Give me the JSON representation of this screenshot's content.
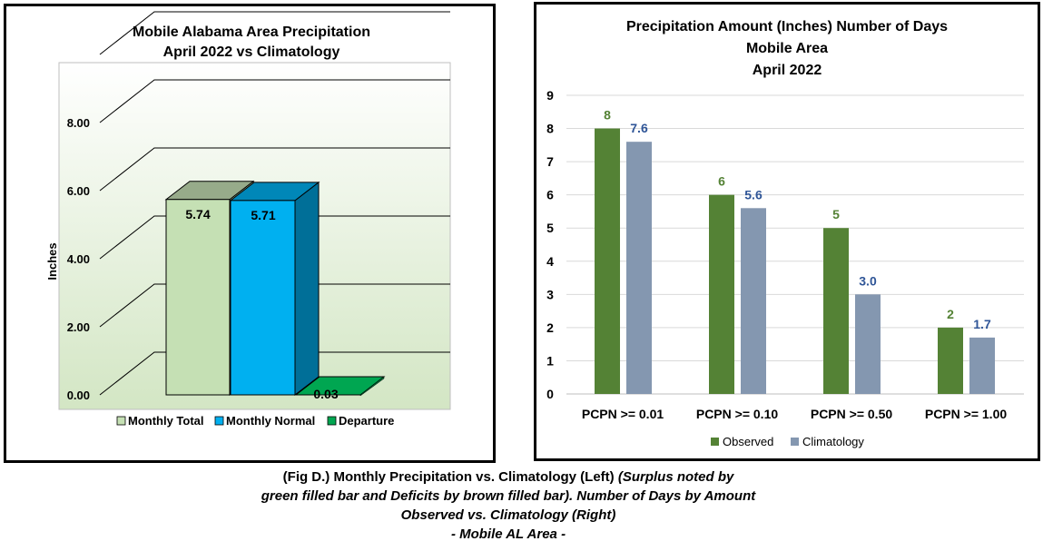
{
  "left_chart": {
    "title_lines": [
      "Mobile Alabama Area Precipitation",
      "April 2022 vs Climatology"
    ],
    "colors": {
      "total_front": "#c5e0b4",
      "total_top": "#97ab8a",
      "total_side": "#a9c497",
      "normal_front": "#00b0f0",
      "normal_top": "#0087b8",
      "normal_side": "#006f98",
      "departure_top": "#00a651",
      "departure_front": "#007a3d"
    }
  },
  "right_chart": {
    "title_lines": [
      "Precipitation Amount (Inches) Number of Days",
      "Mobile Area",
      "April 2022"
    ],
    "colors": {
      "observed": "#548235",
      "climatology": "#8497b0"
    }
  },
  "chart_data": [
    {
      "type": "bar",
      "title": "Mobile Alabama Area Precipitation April 2022 vs Climatology",
      "ylabel": "Inches",
      "ylim": [
        0,
        10
      ],
      "yticks": [
        "0.00",
        "2.00",
        "4.00",
        "6.00",
        "8.00"
      ],
      "three_d": true,
      "grid": true,
      "legend": "bottom",
      "series": [
        {
          "name": "Monthly Total",
          "values": [
            5.74
          ],
          "label": "5.74"
        },
        {
          "name": "Monthly Normal",
          "values": [
            5.71
          ],
          "label": "5.71"
        },
        {
          "name": "Departure",
          "values": [
            0.03
          ],
          "label": "0.03"
        }
      ]
    },
    {
      "type": "bar",
      "title": "Precipitation Amount (Inches) Number of Days Mobile Area April 2022",
      "ylim": [
        0,
        9
      ],
      "yticks": [
        "0",
        "1",
        "2",
        "3",
        "4",
        "5",
        "6",
        "7",
        "8",
        "9"
      ],
      "grid": true,
      "legend": "bottom",
      "categories": [
        "PCPN >= 0.01",
        "PCPN >= 0.10",
        "PCPN >= 0.50",
        "PCPN >= 1.00"
      ],
      "series": [
        {
          "name": "Observed",
          "values": [
            8,
            6,
            5,
            2
          ],
          "labels": [
            "8",
            "6",
            "5",
            "2"
          ]
        },
        {
          "name": "Climatology",
          "values": [
            7.6,
            5.6,
            3.0,
            1.7
          ],
          "labels": [
            "7.6",
            "5.6",
            "3.0",
            "1.7"
          ]
        }
      ]
    }
  ],
  "caption": {
    "line1_bold": "(Fig D.) Monthly Precipitation vs. Climatology (Left) ",
    "line1_italic": "(Surplus noted by",
    "line2": "green filled bar and Deficits by brown filled bar). Number of Days by Amount",
    "line3": "Observed vs. Climatology (Right)",
    "line4": "- Mobile AL Area -"
  }
}
